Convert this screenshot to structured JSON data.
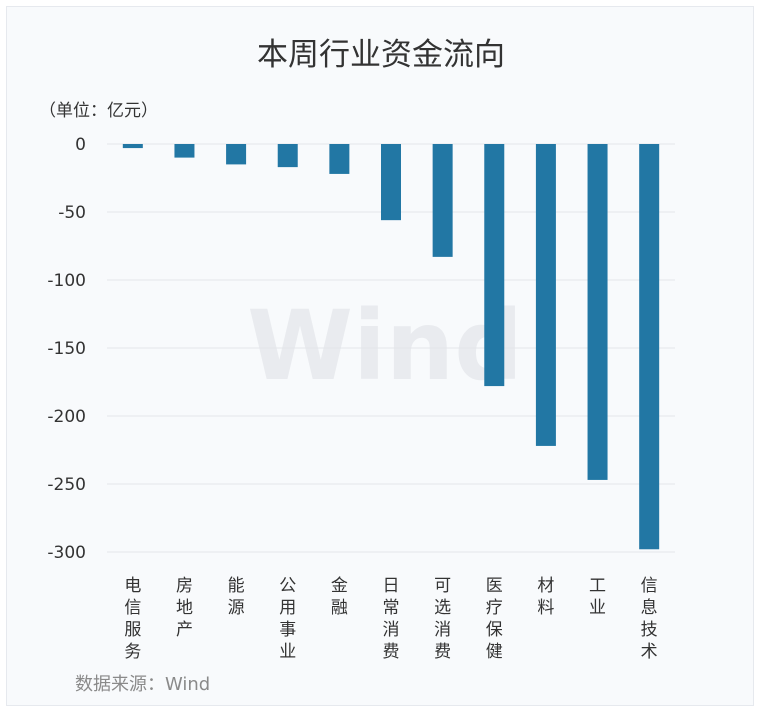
{
  "chart_data": {
    "type": "bar",
    "title": "本周行业资金流向",
    "unit_label": "（单位：亿元）",
    "source": "数据来源：Wind",
    "watermark": "Wind",
    "categories": [
      "电信服务",
      "房地产",
      "能源",
      "公用事业",
      "金融",
      "日常消费",
      "可选消费",
      "医疗保健",
      "材料",
      "工业",
      "信息技术"
    ],
    "values": [
      -3,
      -10,
      -15,
      -17,
      -22,
      -56,
      -83,
      -178,
      -222,
      -247,
      -298
    ],
    "yticks": [
      "0",
      "-50",
      "-100",
      "-150",
      "-200",
      "-250",
      "-300"
    ],
    "ylim": [
      -300,
      0
    ],
    "grid": true,
    "bar_color": "#2277a4"
  }
}
